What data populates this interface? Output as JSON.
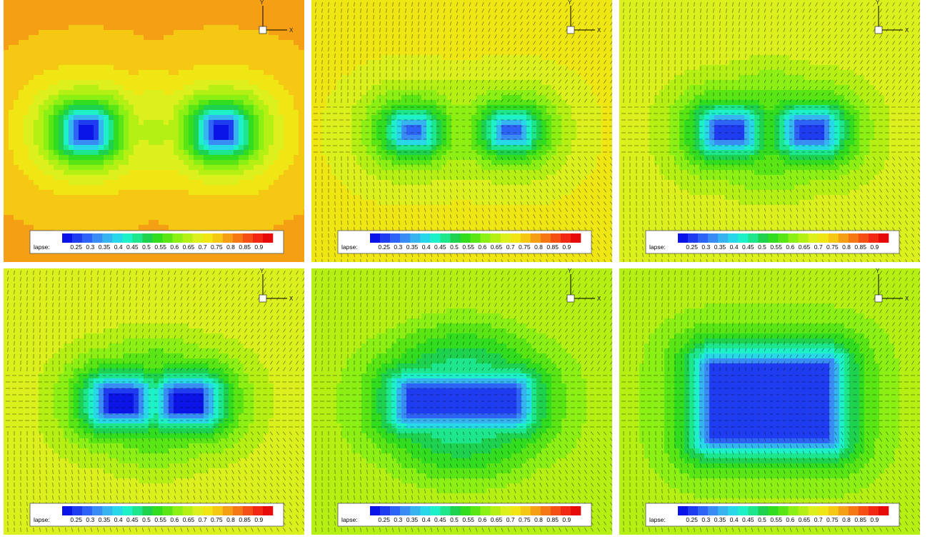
{
  "figure": {
    "colorbar": {
      "label": "lapse:",
      "ticks": [
        "0.25",
        "0.3",
        "0.35",
        "0.4",
        "0.45",
        "0.5",
        "0.55",
        "0.6",
        "0.65",
        "0.7",
        "0.75",
        "0.8",
        "0.85",
        "0.9"
      ],
      "range": [
        0.2,
        0.95
      ],
      "colors": [
        "#0a14e6",
        "#1f3cf0",
        "#2e64f5",
        "#3a8cf5",
        "#35b4f0",
        "#28d8e8",
        "#1ef0c8",
        "#1ee68c",
        "#1ed250",
        "#32dc1e",
        "#5ae614",
        "#8cf014",
        "#b4f014",
        "#dcf01e",
        "#f0e614",
        "#f5c814",
        "#f5a014",
        "#f57814",
        "#f55014",
        "#f02814",
        "#e60a0a"
      ]
    },
    "axes_triad": {
      "x_label": "X",
      "y_label": "Y"
    },
    "color_scale_note": "lapse field, blue = low, green = mid, yellow/orange = high"
  },
  "chart_data": [
    {
      "type": "heatmap",
      "panel": 1,
      "vector_overlay": false,
      "blobs": [
        {
          "x": -0.45,
          "y": 0,
          "min": 0.22,
          "rx": 0.05,
          "ry": 0.05
        },
        {
          "x": 0.45,
          "y": 0,
          "min": 0.22,
          "rx": 0.05,
          "ry": 0.05
        }
      ],
      "saddle_lapse": 0.57,
      "edge_lapse": 0.78
    },
    {
      "type": "heatmap",
      "panel": 2,
      "vector_overlay": true,
      "blobs": [
        {
          "x": -0.33,
          "y": 0,
          "min": 0.3,
          "rx": 0.05,
          "ry": 0.04
        },
        {
          "x": 0.33,
          "y": 0,
          "min": 0.3,
          "rx": 0.05,
          "ry": 0.04
        }
      ],
      "saddle_lapse": 0.52,
      "edge_lapse": 0.72
    },
    {
      "type": "heatmap",
      "panel": 3,
      "vector_overlay": true,
      "blobs": [
        {
          "x": -0.27,
          "y": 0,
          "min": 0.26,
          "rx": 0.08,
          "ry": 0.05
        },
        {
          "x": 0.27,
          "y": 0,
          "min": 0.26,
          "rx": 0.08,
          "ry": 0.05
        }
      ],
      "saddle_lapse": 0.42,
      "edge_lapse": 0.7
    },
    {
      "type": "heatmap",
      "panel": 4,
      "vector_overlay": true,
      "blobs": [
        {
          "x": -0.22,
          "y": 0,
          "min": 0.22,
          "rx": 0.09,
          "ry": 0.06
        },
        {
          "x": 0.22,
          "y": 0,
          "min": 0.22,
          "rx": 0.09,
          "ry": 0.06
        }
      ],
      "saddle_lapse": 0.38,
      "edge_lapse": 0.7
    },
    {
      "type": "heatmap",
      "panel": 5,
      "vector_overlay": true,
      "blobs": [
        {
          "x": 0,
          "y": 0,
          "min": 0.24,
          "rx": 0.35,
          "ry": 0.08
        }
      ],
      "saddle_lapse": 0.24,
      "edge_lapse": 0.66
    },
    {
      "type": "heatmap",
      "panel": 6,
      "vector_overlay": true,
      "blobs": [
        {
          "x": 0,
          "y": 0,
          "min": 0.24,
          "rx": 0.38,
          "ry": 0.24
        }
      ],
      "saddle_lapse": 0.24,
      "edge_lapse": 0.66
    }
  ]
}
